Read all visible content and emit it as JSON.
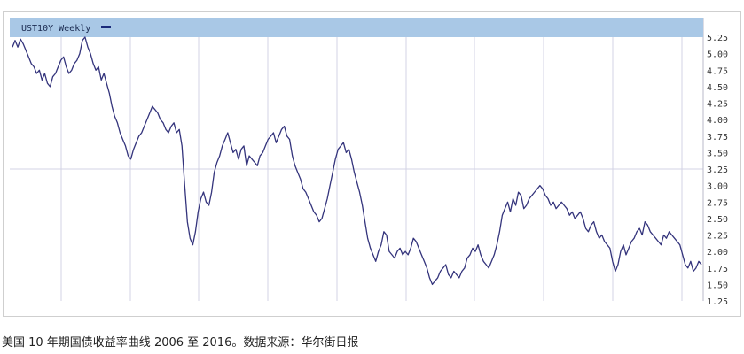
{
  "caption": "美国 10 年期国债收益率曲线 2006 至 2016。数据来源：华尔街日报",
  "chart_data": {
    "type": "line",
    "legend_label": "UST10Y Weekly",
    "legend_placement": "top-left",
    "grid": true,
    "ylim": [
      1.25,
      5.25
    ],
    "yticks": [
      "5.25",
      "5.00",
      "4.75",
      "4.50",
      "4.25",
      "4.00",
      "3.75",
      "3.50",
      "3.25",
      "3.00",
      "2.75",
      "2.50",
      "2.25",
      "2.00",
      "1.75",
      "1.50",
      "1.25"
    ],
    "colors": {
      "line": "#34347c",
      "legend_bar": "#a9c8e6",
      "grid": "#d3d3e4",
      "legend_swatch": "#1a2a7a"
    },
    "series": [
      {
        "name": "UST10Y Weekly",
        "values": [
          5.1,
          5.2,
          5.1,
          5.22,
          5.15,
          5.05,
          4.95,
          4.85,
          4.8,
          4.7,
          4.75,
          4.6,
          4.7,
          4.55,
          4.5,
          4.65,
          4.7,
          4.8,
          4.9,
          4.95,
          4.8,
          4.7,
          4.75,
          4.85,
          4.9,
          5.0,
          5.2,
          5.25,
          5.1,
          5.0,
          4.85,
          4.75,
          4.8,
          4.6,
          4.7,
          4.55,
          4.4,
          4.2,
          4.05,
          3.95,
          3.8,
          3.7,
          3.6,
          3.45,
          3.4,
          3.55,
          3.65,
          3.75,
          3.8,
          3.9,
          4.0,
          4.1,
          4.2,
          4.15,
          4.1,
          4.0,
          3.95,
          3.85,
          3.8,
          3.9,
          3.95,
          3.8,
          3.85,
          3.6,
          3.0,
          2.45,
          2.2,
          2.1,
          2.3,
          2.6,
          2.8,
          2.9,
          2.75,
          2.7,
          2.9,
          3.2,
          3.35,
          3.45,
          3.6,
          3.7,
          3.8,
          3.65,
          3.5,
          3.55,
          3.4,
          3.55,
          3.6,
          3.3,
          3.45,
          3.4,
          3.35,
          3.3,
          3.45,
          3.5,
          3.6,
          3.7,
          3.75,
          3.8,
          3.65,
          3.75,
          3.85,
          3.9,
          3.75,
          3.7,
          3.45,
          3.3,
          3.2,
          3.1,
          2.95,
          2.9,
          2.8,
          2.7,
          2.6,
          2.55,
          2.45,
          2.5,
          2.65,
          2.8,
          3.0,
          3.2,
          3.4,
          3.55,
          3.6,
          3.65,
          3.5,
          3.55,
          3.4,
          3.2,
          3.05,
          2.9,
          2.7,
          2.45,
          2.2,
          2.05,
          1.95,
          1.85,
          2.0,
          2.1,
          2.3,
          2.25,
          2.0,
          1.95,
          1.9,
          2.0,
          2.05,
          1.95,
          2.0,
          1.95,
          2.05,
          2.2,
          2.15,
          2.05,
          1.95,
          1.85,
          1.75,
          1.6,
          1.5,
          1.55,
          1.6,
          1.7,
          1.75,
          1.8,
          1.65,
          1.6,
          1.7,
          1.65,
          1.6,
          1.7,
          1.75,
          1.9,
          1.95,
          2.05,
          2.0,
          2.1,
          1.95,
          1.85,
          1.8,
          1.75,
          1.85,
          1.95,
          2.1,
          2.3,
          2.55,
          2.65,
          2.75,
          2.6,
          2.8,
          2.7,
          2.9,
          2.85,
          2.65,
          2.7,
          2.8,
          2.85,
          2.9,
          2.95,
          3.0,
          2.95,
          2.85,
          2.8,
          2.7,
          2.75,
          2.65,
          2.7,
          2.75,
          2.7,
          2.65,
          2.55,
          2.6,
          2.5,
          2.55,
          2.6,
          2.5,
          2.35,
          2.3,
          2.4,
          2.45,
          2.3,
          2.2,
          2.25,
          2.15,
          2.1,
          2.05,
          1.85,
          1.7,
          1.8,
          2.0,
          2.1,
          1.95,
          2.05,
          2.15,
          2.2,
          2.3,
          2.35,
          2.25,
          2.45,
          2.4,
          2.3,
          2.25,
          2.2,
          2.15,
          2.1,
          2.25,
          2.2,
          2.3,
          2.25,
          2.2,
          2.15,
          2.1,
          1.95,
          1.8,
          1.75,
          1.85,
          1.7,
          1.75,
          1.85,
          1.8
        ]
      }
    ]
  }
}
